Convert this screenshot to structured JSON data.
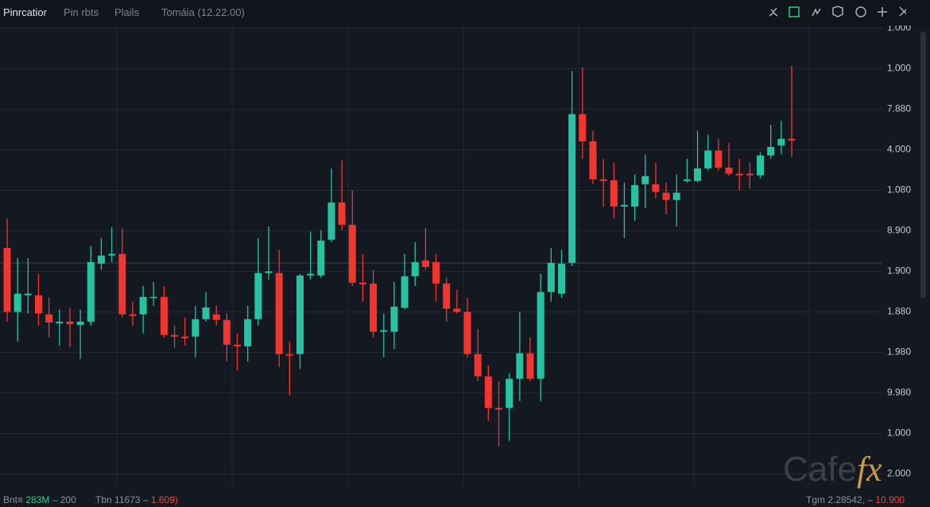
{
  "header": {
    "tabs": [
      "Pinrcatior",
      "Pin rbts",
      "Plails",
      "Tomáia (12.22.00)"
    ]
  },
  "chart_data": {
    "type": "candlestick",
    "up_color": "#26c2a2",
    "down_color": "#f0362e",
    "grid": true,
    "ylim": [
      -0.5,
      11.5
    ],
    "yticks": [
      {
        "value": 11,
        "label": "1.000"
      },
      {
        "value": 10,
        "label": "1.000"
      },
      {
        "value": 9,
        "label": "7.880"
      },
      {
        "value": 8,
        "label": "4.000"
      },
      {
        "value": 7,
        "label": "1.080"
      },
      {
        "value": 6,
        "label": "8.900"
      },
      {
        "value": 5,
        "label": "1.900"
      },
      {
        "value": 4,
        "label": "1.880"
      },
      {
        "value": 3,
        "label": "1.980"
      },
      {
        "value": 2,
        "label": "9.980"
      },
      {
        "value": 1,
        "label": "1.000"
      },
      {
        "value": 0,
        "label": "2.000"
      }
    ],
    "open": [
      5.58,
      4.0,
      4.41,
      4.41,
      3.94,
      3.72,
      3.76,
      3.68,
      3.76,
      5.19,
      5.39,
      5.43,
      3.94,
      3.94,
      4.35,
      4.37,
      3.43,
      3.39,
      3.39,
      3.82,
      3.94,
      3.8,
      3.19,
      3.15,
      3.82,
      4.96,
      4.96,
      2.96,
      2.96,
      4.9,
      4.9,
      5.78,
      6.7,
      6.15,
      4.72,
      4.7,
      3.51,
      3.51,
      4.1,
      4.88,
      5.27,
      5.23,
      4.7,
      4.08,
      4.0,
      2.96,
      2.41,
      1.63,
      1.63,
      2.35,
      2.98,
      2.35,
      4.49,
      4.45,
      5.21,
      8.88,
      8.21,
      7.27,
      7.25,
      6.6,
      6.6,
      7.15,
      7.15,
      6.94,
      6.76,
      7.23,
      7.23,
      7.54,
      7.98,
      7.56,
      7.41,
      7.41,
      7.37,
      7.86,
      8.11,
      8.27
    ],
    "high": [
      6.31,
      5.33,
      5.33,
      4.94,
      4.35,
      4.06,
      4.1,
      4.06,
      5.62,
      5.82,
      6.09,
      6.06,
      4.25,
      4.64,
      4.74,
      4.64,
      3.66,
      3.86,
      4.15,
      4.49,
      4.15,
      3.96,
      3.47,
      4.15,
      5.82,
      6.11,
      5.53,
      3.27,
      4.94,
      5.98,
      6.02,
      7.54,
      7.74,
      7.0,
      5.43,
      5.04,
      3.96,
      4.74,
      5.43,
      5.72,
      6.07,
      5.43,
      4.84,
      4.55,
      4.35,
      3.57,
      2.68,
      2.29,
      2.49,
      4.0,
      3.37,
      4.94,
      5.58,
      5.53,
      9.94,
      10.03,
      8.47,
      7.78,
      7.68,
      7.19,
      7.39,
      7.88,
      7.68,
      7.19,
      7.39,
      7.78,
      8.47,
      8.37,
      8.27,
      8.17,
      7.78,
      7.68,
      7.94,
      8.62,
      8.72,
      10.07
    ],
    "low": [
      3.76,
      3.27,
      3.96,
      3.66,
      3.37,
      3.17,
      3.13,
      2.84,
      3.66,
      5.04,
      5.23,
      3.86,
      3.66,
      3.47,
      4.15,
      3.37,
      3.12,
      3.17,
      2.88,
      3.76,
      3.66,
      2.78,
      2.55,
      2.78,
      3.66,
      4.8,
      2.64,
      1.94,
      2.59,
      4.8,
      4.84,
      5.72,
      6.02,
      4.64,
      4.25,
      3.37,
      2.88,
      3.08,
      4.06,
      4.64,
      5.04,
      4.25,
      3.76,
      3.96,
      2.88,
      2.29,
      1.31,
      0.68,
      0.82,
      1.8,
      2.29,
      1.8,
      4.25,
      4.35,
      5.13,
      7.78,
      7.15,
      6.6,
      6.31,
      5.82,
      6.25,
      6.56,
      6.8,
      6.41,
      6.11,
      7.19,
      7.19,
      7.49,
      7.49,
      7.35,
      7.0,
      7.04,
      7.29,
      7.78,
      7.88,
      7.82
    ],
    "close": [
      4.0,
      4.45,
      4.45,
      3.96,
      3.74,
      3.76,
      3.7,
      3.76,
      5.23,
      5.39,
      5.43,
      3.94,
      3.9,
      4.37,
      4.37,
      3.43,
      3.39,
      3.35,
      3.82,
      4.11,
      3.8,
      3.19,
      3.15,
      3.82,
      4.96,
      5.0,
      2.96,
      2.92,
      4.9,
      4.94,
      5.76,
      6.7,
      6.15,
      4.72,
      4.68,
      3.51,
      3.55,
      4.13,
      4.88,
      5.23,
      5.11,
      4.7,
      4.08,
      4.0,
      2.96,
      2.41,
      1.63,
      1.59,
      2.35,
      2.98,
      2.35,
      4.49,
      5.21,
      5.19,
      8.88,
      8.21,
      7.27,
      7.23,
      6.6,
      6.64,
      7.13,
      7.35,
      6.96,
      6.76,
      6.94,
      7.27,
      7.54,
      7.98,
      7.56,
      7.41,
      7.37,
      7.37,
      7.86,
      8.07,
      8.27,
      8.23
    ]
  },
  "footer": {
    "left": [
      "Bnt≡",
      "283M",
      "– 200"
    ],
    "middle": [
      "Tbn",
      "11673 –",
      "1.609)"
    ],
    "right": [
      "Tgm",
      "2.28542, –",
      "10.900"
    ]
  },
  "watermark": {
    "left": "Cafe",
    "right": "fx"
  }
}
